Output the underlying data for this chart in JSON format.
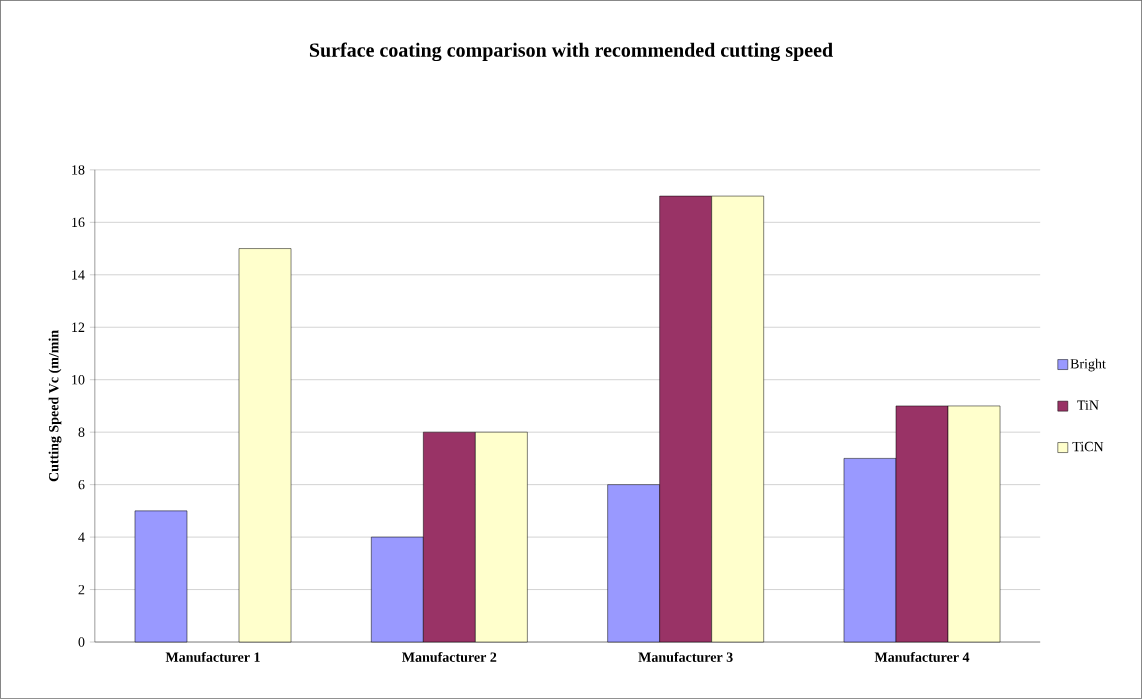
{
  "chart_data": {
    "type": "bar",
    "title": "Surface coating comparison with recommended cutting speed",
    "ylabel": "Cutting Speed Vc (m/min",
    "categories": [
      "Manufacturer 1",
      "Manufacturer 2",
      "Manufacturer 3",
      "Manufacturer 4"
    ],
    "series": [
      {
        "name": "Bright",
        "color": "#9999ff",
        "values": [
          5,
          4,
          6,
          7
        ]
      },
      {
        "name": "TiN",
        "color": "#993366",
        "values": [
          null,
          8,
          17,
          9
        ]
      },
      {
        "name": "TiCN",
        "color": "#ffffcc",
        "values": [
          15,
          8,
          17,
          9
        ]
      }
    ],
    "ylim": [
      0,
      18
    ],
    "yticks": [
      0,
      2,
      4,
      6,
      8,
      10,
      12,
      14,
      16,
      18
    ],
    "grid": "y",
    "legend": "right"
  }
}
